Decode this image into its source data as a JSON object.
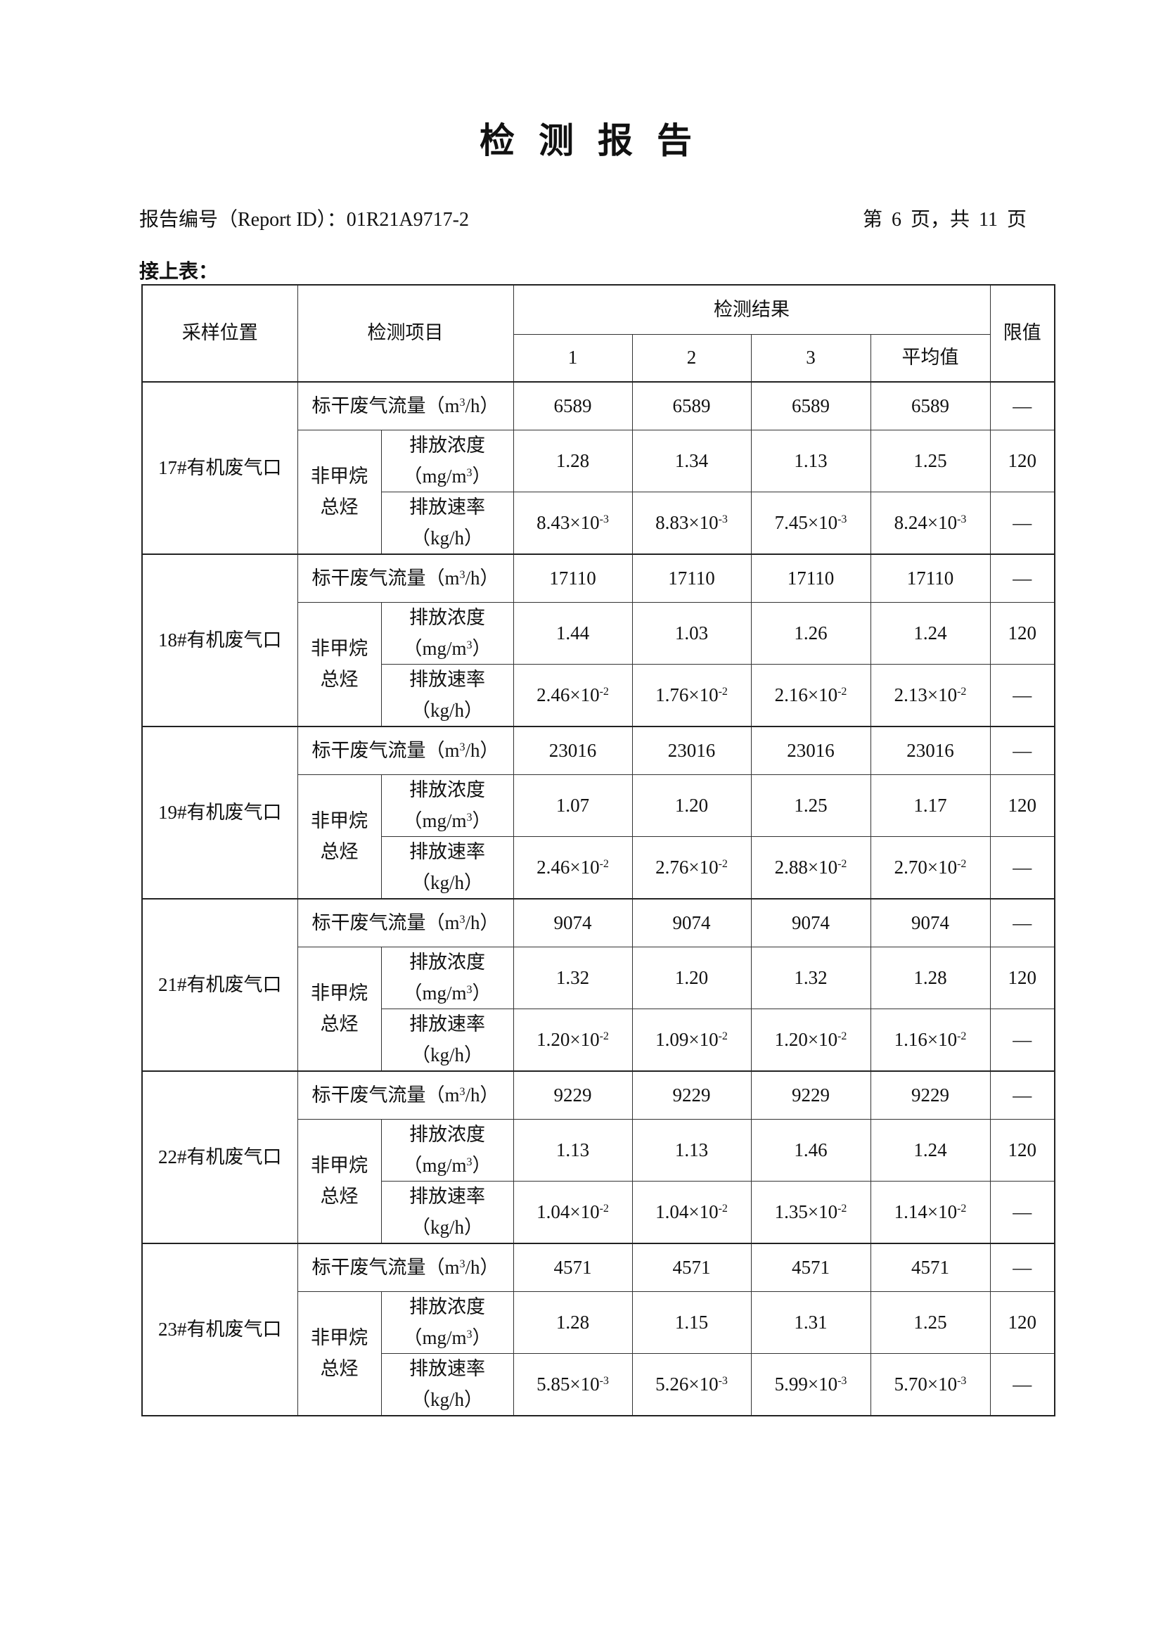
{
  "title": "检测报告",
  "report_id": "报告编号（Report ID）：01R21A9717-2",
  "page_info": "第 6 页，共 11 页",
  "continued": "接上表：",
  "table": {
    "headers": {
      "location": "采样位置",
      "item": "检测项目",
      "results": "检测结果",
      "r1": "1",
      "r2": "2",
      "r3": "3",
      "avg": "平均值",
      "limit": "限值"
    },
    "labels": {
      "flow_pre": "标干废气流量（m",
      "flow_sup": "3",
      "flow_post": "/h）",
      "pollutant_l1": "非甲烷",
      "pollutant_l2": "总烃",
      "conc_l1": "排放浓度",
      "conc_unit_pre": "（mg/m",
      "conc_unit_sup": "3",
      "conc_unit_post": "）",
      "rate_l1": "排放速率",
      "rate_unit": "（kg/h）"
    },
    "groups": [
      {
        "location": "17#有机废气口",
        "flow": [
          "6589",
          "6589",
          "6589",
          "6589"
        ],
        "flow_limit": "—",
        "conc": [
          "1.28",
          "1.34",
          "1.13",
          "1.25"
        ],
        "conc_limit": "120",
        "rate": [
          [
            "8.43×10",
            "-3"
          ],
          [
            "8.83×10",
            "-3"
          ],
          [
            "7.45×10",
            "-3"
          ],
          [
            "8.24×10",
            "-3"
          ]
        ],
        "rate_limit": "—"
      },
      {
        "location": "18#有机废气口",
        "flow": [
          "17110",
          "17110",
          "17110",
          "17110"
        ],
        "flow_limit": "—",
        "conc": [
          "1.44",
          "1.03",
          "1.26",
          "1.24"
        ],
        "conc_limit": "120",
        "rate": [
          [
            "2.46×10",
            "-2"
          ],
          [
            "1.76×10",
            "-2"
          ],
          [
            "2.16×10",
            "-2"
          ],
          [
            "2.13×10",
            "-2"
          ]
        ],
        "rate_limit": "—"
      },
      {
        "location": "19#有机废气口",
        "flow": [
          "23016",
          "23016",
          "23016",
          "23016"
        ],
        "flow_limit": "—",
        "conc": [
          "1.07",
          "1.20",
          "1.25",
          "1.17"
        ],
        "conc_limit": "120",
        "rate": [
          [
            "2.46×10",
            "-2"
          ],
          [
            "2.76×10",
            "-2"
          ],
          [
            "2.88×10",
            "-2"
          ],
          [
            "2.70×10",
            "-2"
          ]
        ],
        "rate_limit": "—"
      },
      {
        "location": "21#有机废气口",
        "flow": [
          "9074",
          "9074",
          "9074",
          "9074"
        ],
        "flow_limit": "—",
        "conc": [
          "1.32",
          "1.20",
          "1.32",
          "1.28"
        ],
        "conc_limit": "120",
        "rate": [
          [
            "1.20×10",
            "-2"
          ],
          [
            "1.09×10",
            "-2"
          ],
          [
            "1.20×10",
            "-2"
          ],
          [
            "1.16×10",
            "-2"
          ]
        ],
        "rate_limit": "—"
      },
      {
        "location": "22#有机废气口",
        "flow": [
          "9229",
          "9229",
          "9229",
          "9229"
        ],
        "flow_limit": "—",
        "conc": [
          "1.13",
          "1.13",
          "1.46",
          "1.24"
        ],
        "conc_limit": "120",
        "rate": [
          [
            "1.04×10",
            "-2"
          ],
          [
            "1.04×10",
            "-2"
          ],
          [
            "1.35×10",
            "-2"
          ],
          [
            "1.14×10",
            "-2"
          ]
        ],
        "rate_limit": "—"
      },
      {
        "location": "23#有机废气口",
        "flow": [
          "4571",
          "4571",
          "4571",
          "4571"
        ],
        "flow_limit": "—",
        "conc": [
          "1.28",
          "1.15",
          "1.31",
          "1.25"
        ],
        "conc_limit": "120",
        "rate": [
          [
            "5.85×10",
            "-3"
          ],
          [
            "5.26×10",
            "-3"
          ],
          [
            "5.99×10",
            "-3"
          ],
          [
            "5.70×10",
            "-3"
          ]
        ],
        "rate_limit": "—"
      }
    ]
  }
}
